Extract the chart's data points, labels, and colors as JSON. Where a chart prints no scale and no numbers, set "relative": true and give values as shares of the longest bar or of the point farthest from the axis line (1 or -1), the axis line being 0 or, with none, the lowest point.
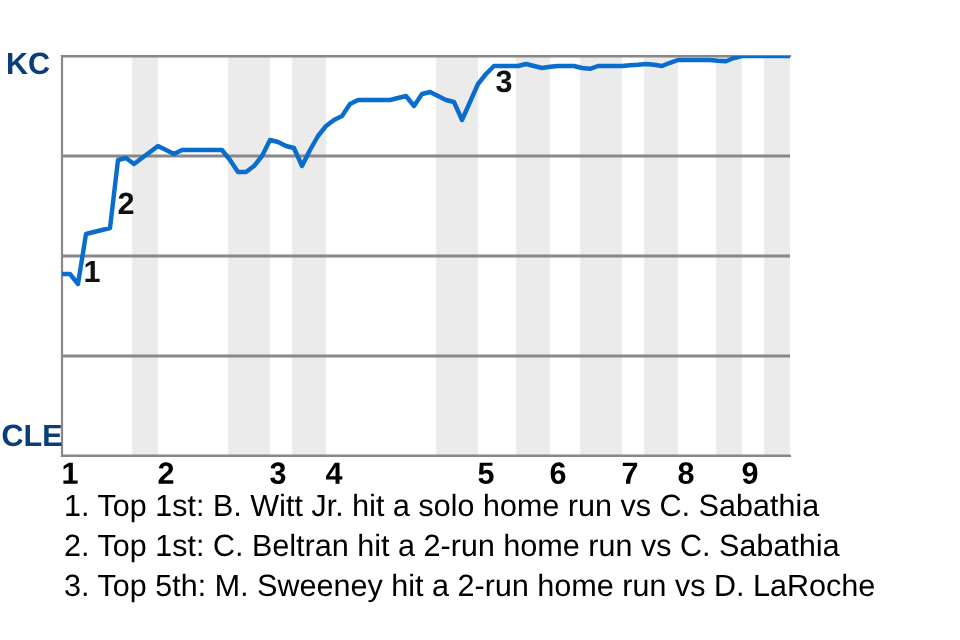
{
  "chart_data": {
    "type": "line",
    "relative": true,
    "categories": [
      null,
      "1",
      null,
      null,
      null,
      null,
      null,
      null,
      null,
      null,
      null,
      null,
      null,
      "2",
      null,
      null,
      null,
      null,
      null,
      null,
      null,
      null,
      null,
      null,
      null,
      null,
      null,
      "3",
      null,
      null,
      null,
      null,
      null,
      null,
      "4",
      null,
      null,
      null,
      null,
      null,
      null,
      null,
      null,
      null,
      null,
      null,
      null,
      null,
      null,
      null,
      null,
      null,
      null,
      "5",
      null,
      null,
      null,
      null,
      null,
      null,
      null,
      null,
      "6",
      null,
      null,
      null,
      null,
      null,
      null,
      null,
      null,
      "7",
      null,
      null,
      null,
      null,
      null,
      null,
      "8",
      null,
      null,
      null,
      null,
      null,
      null,
      null,
      "9",
      null,
      null,
      null,
      null,
      null
    ],
    "series": [
      {
        "color": "#0a6ccc",
        "values": [
          0.455,
          0.455,
          0.43,
          0.555,
          0.56,
          0.565,
          0.57,
          0.74,
          0.745,
          0.73,
          0.745,
          0.76,
          0.775,
          0.765,
          0.755,
          0.765,
          0.765,
          0.765,
          0.765,
          0.765,
          0.765,
          0.74,
          0.71,
          0.71,
          0.725,
          0.75,
          0.79,
          0.785,
          0.775,
          0.77,
          0.725,
          0.765,
          0.8,
          0.825,
          0.84,
          0.85,
          0.88,
          0.89,
          0.89,
          0.89,
          0.89,
          0.89,
          0.895,
          0.9,
          0.875,
          0.905,
          0.91,
          0.9,
          0.89,
          0.885,
          0.84,
          0.885,
          0.93,
          0.955,
          0.975,
          0.975,
          0.975,
          0.975,
          0.98,
          0.975,
          0.97,
          0.973,
          0.975,
          0.975,
          0.975,
          0.97,
          0.968,
          0.975,
          0.975,
          0.975,
          0.975,
          0.977,
          0.978,
          0.98,
          0.978,
          0.975,
          0.983,
          0.99,
          0.99,
          0.99,
          0.99,
          0.99,
          0.988,
          0.987,
          0.995,
          1,
          1,
          1,
          1,
          1,
          1,
          1
        ]
      }
    ],
    "grid": "y",
    "annotations": [
      "KC",
      "CLE",
      "1",
      "2",
      "3",
      "1. Top 1st: B. Witt Jr. hit a solo home run vs C. Sabathia",
      "2. Top 1st: C. Beltran hit a 2-run home run vs C. Sabathia",
      "3. Top 5th: M. Sweeney hit a 2-run home run vs D. LaRoche"
    ]
  }
}
